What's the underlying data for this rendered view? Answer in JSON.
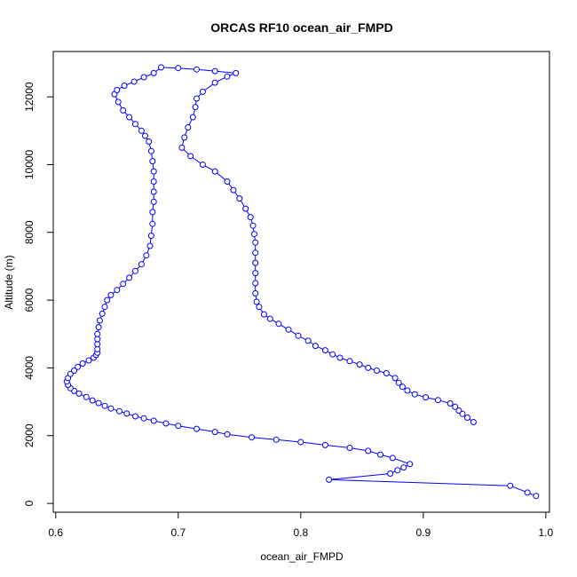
{
  "chart_data": {
    "type": "scatter",
    "title": "ORCAS RF10 ocean_air_FMPD",
    "xlabel": "ocean_air_FMPD",
    "ylabel": "Altitude (m)",
    "xlim": [
      0.598,
      1.003
    ],
    "ylim": [
      -260,
      13340
    ],
    "xticks": [
      0.6,
      0.7,
      0.8,
      0.9,
      1.0
    ],
    "xtick_labels": [
      "0.6",
      "0.7",
      "0.8",
      "0.9",
      "1.0"
    ],
    "yticks": [
      0,
      2000,
      4000,
      6000,
      8000,
      10000,
      12000
    ],
    "ytick_labels": [
      "0",
      "2000",
      "4000",
      "6000",
      "8000",
      "10000",
      "12000"
    ],
    "grid": false,
    "legend": false,
    "marker": "open-circle",
    "color": "#0000ff",
    "series": [
      {
        "name": "",
        "connected_by_line": true,
        "points": [
          [
            0.992,
            220
          ],
          [
            0.985,
            320
          ],
          [
            0.971,
            520
          ],
          [
            0.823,
            700
          ],
          [
            0.873,
            880
          ],
          [
            0.879,
            980
          ],
          [
            0.884,
            1060
          ],
          [
            0.889,
            1160
          ],
          [
            0.875,
            1340
          ],
          [
            0.865,
            1440
          ],
          [
            0.855,
            1550
          ],
          [
            0.84,
            1640
          ],
          [
            0.82,
            1720
          ],
          [
            0.8,
            1810
          ],
          [
            0.78,
            1880
          ],
          [
            0.76,
            1950
          ],
          [
            0.74,
            2040
          ],
          [
            0.73,
            2110
          ],
          [
            0.715,
            2200
          ],
          [
            0.7,
            2290
          ],
          [
            0.69,
            2360
          ],
          [
            0.68,
            2440
          ],
          [
            0.672,
            2510
          ],
          [
            0.665,
            2570
          ],
          [
            0.658,
            2650
          ],
          [
            0.652,
            2720
          ],
          [
            0.645,
            2800
          ],
          [
            0.64,
            2880
          ],
          [
            0.635,
            2960
          ],
          [
            0.63,
            3040
          ],
          [
            0.625,
            3140
          ],
          [
            0.619,
            3240
          ],
          [
            0.615,
            3320
          ],
          [
            0.612,
            3400
          ],
          [
            0.61,
            3500
          ],
          [
            0.609,
            3600
          ],
          [
            0.61,
            3700
          ],
          [
            0.612,
            3820
          ],
          [
            0.615,
            3920
          ],
          [
            0.618,
            4030
          ],
          [
            0.622,
            4130
          ],
          [
            0.627,
            4220
          ],
          [
            0.631,
            4300
          ],
          [
            0.633,
            4380
          ],
          [
            0.634,
            4450
          ],
          [
            0.634,
            4550
          ],
          [
            0.634,
            4700
          ],
          [
            0.634,
            4850
          ],
          [
            0.634,
            5000
          ],
          [
            0.635,
            5200
          ],
          [
            0.636,
            5400
          ],
          [
            0.638,
            5600
          ],
          [
            0.64,
            5800
          ],
          [
            0.642,
            6000
          ],
          [
            0.645,
            6150
          ],
          [
            0.65,
            6300
          ],
          [
            0.655,
            6480
          ],
          [
            0.66,
            6660
          ],
          [
            0.665,
            6860
          ],
          [
            0.67,
            7060
          ],
          [
            0.674,
            7320
          ],
          [
            0.677,
            7600
          ],
          [
            0.678,
            7900
          ],
          [
            0.679,
            8250
          ],
          [
            0.679,
            8600
          ],
          [
            0.68,
            8900
          ],
          [
            0.68,
            9200
          ],
          [
            0.68,
            9500
          ],
          [
            0.68,
            9800
          ],
          [
            0.679,
            10100
          ],
          [
            0.678,
            10400
          ],
          [
            0.676,
            10680
          ],
          [
            0.673,
            10850
          ],
          [
            0.67,
            11000
          ],
          [
            0.665,
            11200
          ],
          [
            0.66,
            11400
          ],
          [
            0.655,
            11600
          ],
          [
            0.651,
            11850
          ],
          [
            0.648,
            12080
          ],
          [
            0.65,
            12200
          ],
          [
            0.656,
            12330
          ],
          [
            0.664,
            12450
          ],
          [
            0.672,
            12580
          ],
          [
            0.68,
            12700
          ],
          [
            0.686,
            12870
          ],
          [
            0.7,
            12850
          ],
          [
            0.715,
            12810
          ],
          [
            0.73,
            12760
          ],
          [
            0.747,
            12700
          ],
          [
            0.74,
            12600
          ],
          [
            0.73,
            12420
          ],
          [
            0.72,
            12150
          ],
          [
            0.715,
            11950
          ],
          [
            0.714,
            11700
          ],
          [
            0.712,
            11400
          ],
          [
            0.708,
            11100
          ],
          [
            0.705,
            10800
          ],
          [
            0.703,
            10500
          ],
          [
            0.71,
            10250
          ],
          [
            0.72,
            10000
          ],
          [
            0.73,
            9800
          ],
          [
            0.74,
            9500
          ],
          [
            0.745,
            9250
          ],
          [
            0.75,
            9000
          ],
          [
            0.755,
            8700
          ],
          [
            0.759,
            8450
          ],
          [
            0.761,
            8200
          ],
          [
            0.762,
            7950
          ],
          [
            0.763,
            7700
          ],
          [
            0.763,
            7400
          ],
          [
            0.763,
            7100
          ],
          [
            0.763,
            6800
          ],
          [
            0.763,
            6500
          ],
          [
            0.763,
            6200
          ],
          [
            0.764,
            5950
          ],
          [
            0.766,
            5800
          ],
          [
            0.77,
            5580
          ],
          [
            0.775,
            5450
          ],
          [
            0.782,
            5300
          ],
          [
            0.79,
            5130
          ],
          [
            0.798,
            4950
          ],
          [
            0.806,
            4800
          ],
          [
            0.812,
            4650
          ],
          [
            0.82,
            4520
          ],
          [
            0.826,
            4400
          ],
          [
            0.832,
            4300
          ],
          [
            0.84,
            4200
          ],
          [
            0.848,
            4100
          ],
          [
            0.855,
            4000
          ],
          [
            0.862,
            3920
          ],
          [
            0.87,
            3840
          ],
          [
            0.877,
            3700
          ],
          [
            0.88,
            3560
          ],
          [
            0.883,
            3440
          ],
          [
            0.887,
            3330
          ],
          [
            0.893,
            3220
          ],
          [
            0.902,
            3130
          ],
          [
            0.912,
            3050
          ],
          [
            0.922,
            2950
          ],
          [
            0.926,
            2850
          ],
          [
            0.929,
            2740
          ],
          [
            0.932,
            2640
          ],
          [
            0.936,
            2530
          ],
          [
            0.941,
            2400
          ]
        ]
      }
    ]
  }
}
